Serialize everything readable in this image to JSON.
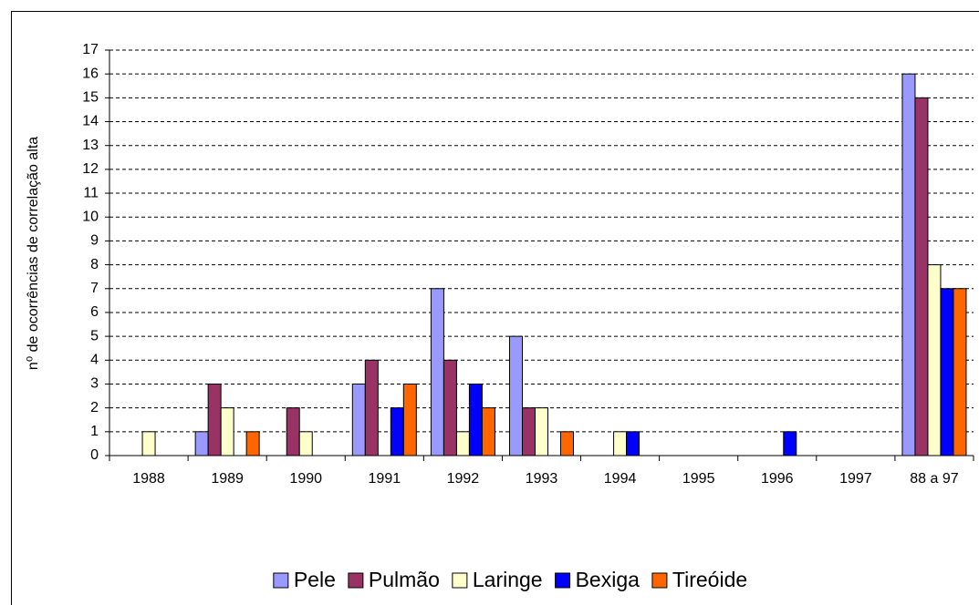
{
  "chart_data": {
    "type": "bar",
    "y_label": "n⁰  de ocorrências de correlação alta",
    "categories": [
      "1988",
      "1989",
      "1990",
      "1991",
      "1992",
      "1993",
      "1994",
      "1995",
      "1996",
      "1997",
      "88 a 97"
    ],
    "series": [
      {
        "name": "Pele",
        "color": "#9999ff",
        "values": [
          0,
          1,
          0,
          3,
          7,
          5,
          0,
          0,
          0,
          0,
          16
        ]
      },
      {
        "name": "Pulmão",
        "color": "#993366",
        "values": [
          0,
          3,
          2,
          4,
          4,
          2,
          0,
          0,
          0,
          0,
          15
        ]
      },
      {
        "name": "Laringe",
        "color": "#ffffcc",
        "values": [
          1,
          2,
          1,
          0,
          1,
          2,
          1,
          0,
          0,
          0,
          8
        ]
      },
      {
        "name": "Bexiga",
        "color": "#0000ff",
        "values": [
          0,
          0,
          0,
          2,
          3,
          0,
          1,
          0,
          1,
          0,
          7
        ]
      },
      {
        "name": "Tireóide",
        "color": "#ff6600",
        "values": [
          0,
          1,
          0,
          3,
          2,
          1,
          0,
          0,
          0,
          0,
          7
        ]
      }
    ],
    "ylim": [
      0,
      17
    ],
    "yticks": [
      0,
      1,
      2,
      3,
      4,
      5,
      6,
      7,
      8,
      9,
      10,
      11,
      12,
      13,
      14,
      15,
      16,
      17
    ],
    "grid": true,
    "legend": "bottom"
  }
}
